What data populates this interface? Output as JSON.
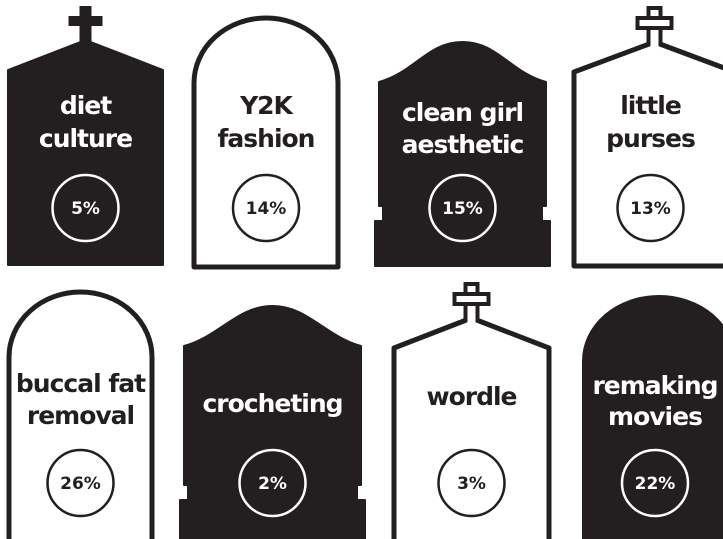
{
  "stones": [
    {
      "label": [
        "diet",
        "culture"
      ],
      "percent": "5%"
    },
    {
      "label": [
        "Y2K",
        "fashion"
      ],
      "percent": "14%"
    },
    {
      "label": [
        "clean girl",
        "aesthetic"
      ],
      "percent": "15%"
    },
    {
      "label": [
        "little",
        "purses"
      ],
      "percent": "13%"
    },
    {
      "label": [
        "buccal fat",
        "removal"
      ],
      "percent": "26%"
    },
    {
      "label": [
        "crocheting"
      ],
      "percent": "2%"
    },
    {
      "label": [
        "wordle"
      ],
      "percent": "3%"
    },
    {
      "label": [
        "remaking",
        "movies"
      ],
      "percent": "22%"
    }
  ]
}
